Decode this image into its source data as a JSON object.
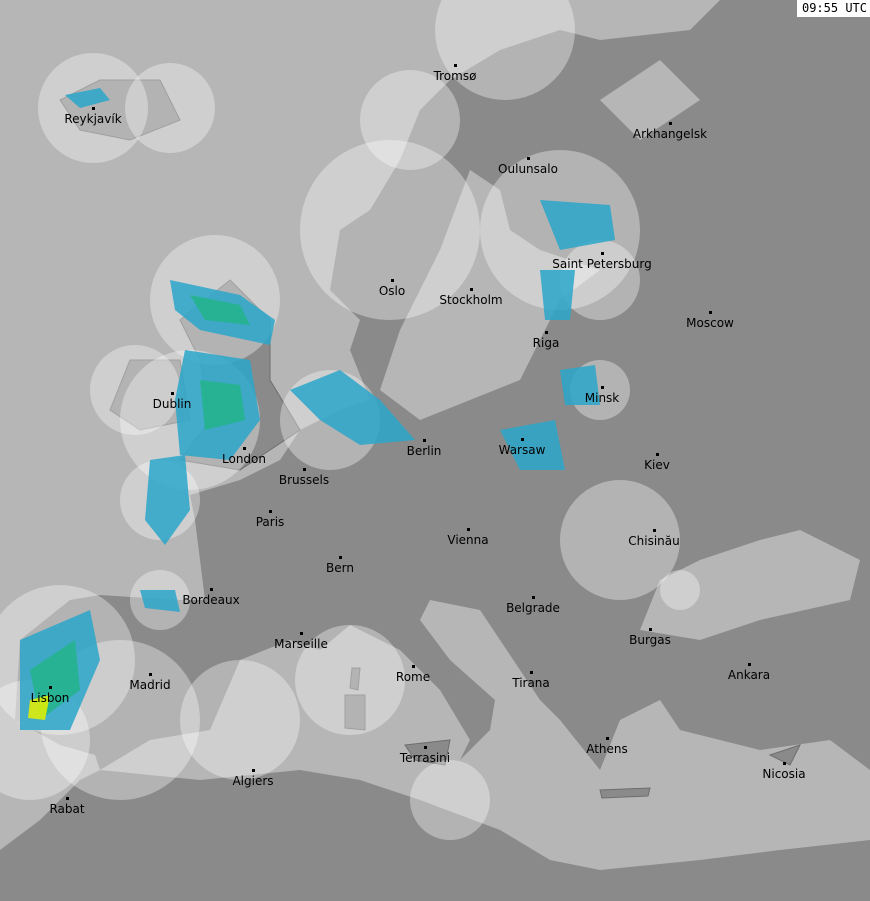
{
  "timestamp": "09:55 UTC",
  "colors": {
    "land": "#8a8a8a",
    "sea": "#b6b6b6",
    "coverage_overlay": "#ffffff",
    "border": "#6e6e6e",
    "radar_light": "#2aa6c9",
    "radar_medium": "#22b48a",
    "radar_heavy": "#e8f000"
  },
  "cities": [
    {
      "name": "Reykjavík"
    },
    {
      "name": "Tromsø"
    },
    {
      "name": "Arkhangelsk"
    },
    {
      "name": "Oulunsalo"
    },
    {
      "name": "Saint Petersburg"
    },
    {
      "name": "Oslo"
    },
    {
      "name": "Stockholm"
    },
    {
      "name": "Moscow"
    },
    {
      "name": "Riga"
    },
    {
      "name": "Dublin"
    },
    {
      "name": "Minsk"
    },
    {
      "name": "Berlin"
    },
    {
      "name": "Warsaw"
    },
    {
      "name": "London"
    },
    {
      "name": "Kiev"
    },
    {
      "name": "Brussels"
    },
    {
      "name": "Paris"
    },
    {
      "name": "Vienna"
    },
    {
      "name": "Chisinău"
    },
    {
      "name": "Bern"
    },
    {
      "name": "Bordeaux"
    },
    {
      "name": "Belgrade"
    },
    {
      "name": "Marseille"
    },
    {
      "name": "Burgas"
    },
    {
      "name": "Rome"
    },
    {
      "name": "Ankara"
    },
    {
      "name": "Madrid"
    },
    {
      "name": "Tirana"
    },
    {
      "name": "Lisbon"
    },
    {
      "name": "Athens"
    },
    {
      "name": "Terrasini"
    },
    {
      "name": "Nicosia"
    },
    {
      "name": "Algiers"
    },
    {
      "name": "Rabat"
    }
  ]
}
